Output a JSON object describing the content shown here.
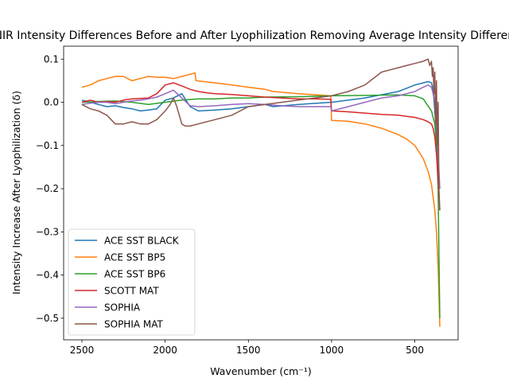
{
  "chart_data": {
    "type": "line",
    "title": "NIR Intensity Differences Before and After Lyophilization Removing Average Intensity Difference",
    "xlabel": "Wavenumber (cm⁻¹)",
    "ylabel": "Intensity Increase After Lyophilization (δ)",
    "xlim": [
      2610,
      240
    ],
    "ylim": [
      -0.55,
      0.13
    ],
    "x_inverted": true,
    "xticks": [
      2500,
      2000,
      1500,
      1000,
      500
    ],
    "yticks": [
      0.1,
      0.0,
      -0.1,
      -0.2,
      -0.3,
      -0.4,
      -0.5
    ],
    "grid": false,
    "legend_position": "lower-left",
    "series": [
      {
        "name": "ACE SST BLACK",
        "color": "#1f77b4",
        "x": [
          2500,
          2450,
          2400,
          2350,
          2300,
          2250,
          2200,
          2150,
          2100,
          2050,
          2000,
          1950,
          1900,
          1850,
          1800,
          1700,
          1600,
          1500,
          1400,
          1350,
          1200,
          1000,
          800,
          600,
          500,
          450,
          420,
          400,
          390,
          380,
          370,
          360,
          350
        ],
        "values": [
          0.005,
          0.0,
          -0.005,
          -0.01,
          -0.008,
          -0.012,
          -0.015,
          -0.02,
          -0.018,
          -0.015,
          0.005,
          0.01,
          0.02,
          -0.01,
          -0.02,
          -0.018,
          -0.015,
          -0.01,
          -0.005,
          -0.01,
          -0.005,
          0.0,
          0.01,
          0.025,
          0.04,
          0.045,
          0.048,
          0.045,
          0.03,
          -0.02,
          -0.08,
          -0.15,
          -0.2
        ]
      },
      {
        "name": "ACE SST BP5",
        "color": "#ff7f0e",
        "x": [
          2500,
          2450,
          2400,
          2350,
          2300,
          2250,
          2200,
          2150,
          2100,
          2050,
          2000,
          1950,
          1900,
          1850,
          1820,
          1815,
          1700,
          1600,
          1500,
          1400,
          1350,
          1200,
          1005,
          1000,
          900,
          800,
          700,
          600,
          550,
          500,
          450,
          420,
          400,
          390,
          380,
          370,
          360,
          355,
          350
        ],
        "values": [
          0.035,
          0.04,
          0.05,
          0.055,
          0.06,
          0.06,
          0.05,
          0.055,
          0.06,
          0.058,
          0.058,
          0.055,
          0.06,
          0.065,
          0.068,
          0.05,
          0.045,
          0.04,
          0.035,
          0.03,
          0.025,
          0.02,
          0.015,
          -0.042,
          -0.044,
          -0.05,
          -0.06,
          -0.075,
          -0.085,
          -0.1,
          -0.13,
          -0.16,
          -0.19,
          -0.22,
          -0.25,
          -0.3,
          -0.38,
          -0.45,
          -0.52
        ]
      },
      {
        "name": "ACE SST BP6",
        "color": "#2ca02c",
        "x": [
          2500,
          2400,
          2300,
          2200,
          2100,
          2000,
          1900,
          1800,
          1700,
          1600,
          1500,
          1400,
          1200,
          1000,
          800,
          600,
          500,
          450,
          400,
          380,
          370,
          360,
          355,
          350
        ],
        "values": [
          0.0,
          0.002,
          0.003,
          0.0,
          -0.005,
          0.0,
          0.005,
          0.008,
          0.008,
          0.01,
          0.01,
          0.012,
          0.013,
          0.015,
          0.016,
          0.017,
          0.015,
          0.008,
          -0.02,
          -0.05,
          -0.1,
          -0.2,
          -0.35,
          -0.5
        ]
      },
      {
        "name": "SCOTT MAT",
        "color": "#d62728",
        "x": [
          2500,
          2450,
          2400,
          2350,
          2300,
          2250,
          2200,
          2100,
          2050,
          2000,
          1950,
          1900,
          1850,
          1800,
          1750,
          1700,
          1600,
          1500,
          1400,
          1300,
          1200,
          1100,
          1005,
          1000,
          900,
          800,
          700,
          600,
          500,
          450,
          420,
          400,
          390,
          380,
          370,
          360,
          350
        ],
        "values": [
          0.0,
          0.005,
          0.0,
          0.002,
          0.0,
          0.005,
          0.008,
          0.01,
          0.02,
          0.04,
          0.045,
          0.038,
          0.03,
          0.025,
          0.022,
          0.02,
          0.018,
          0.015,
          0.012,
          0.01,
          0.008,
          0.008,
          0.007,
          -0.02,
          -0.022,
          -0.025,
          -0.028,
          -0.03,
          -0.035,
          -0.04,
          -0.045,
          -0.05,
          -0.06,
          -0.08,
          -0.12,
          -0.18,
          -0.25
        ]
      },
      {
        "name": "SOPHIA",
        "color": "#9467bd",
        "x": [
          2500,
          2450,
          2400,
          2350,
          2300,
          2250,
          2200,
          2150,
          2100,
          2050,
          2000,
          1950,
          1900,
          1850,
          1800,
          1700,
          1600,
          1500,
          1400,
          1300,
          1200,
          1005,
          1000,
          900,
          800,
          700,
          600,
          500,
          450,
          420,
          400,
          390,
          380,
          370,
          360,
          350
        ],
        "values": [
          -0.005,
          -0.002,
          0.0,
          0.0,
          -0.003,
          0.0,
          0.003,
          0.005,
          0.008,
          0.012,
          0.02,
          0.028,
          0.01,
          -0.008,
          -0.01,
          -0.008,
          -0.005,
          -0.003,
          -0.005,
          -0.008,
          -0.01,
          -0.01,
          -0.02,
          -0.01,
          0.0,
          0.01,
          0.015,
          0.025,
          0.035,
          0.04,
          0.035,
          0.02,
          0.0,
          -0.05,
          -0.12,
          -0.2
        ]
      },
      {
        "name": "SOPHIA MAT",
        "color": "#8c564b",
        "x": [
          2500,
          2450,
          2400,
          2350,
          2300,
          2250,
          2200,
          2150,
          2100,
          2050,
          2000,
          1970,
          1950,
          1930,
          1900,
          1880,
          1850,
          1800,
          1700,
          1600,
          1500,
          1400,
          1300,
          1200,
          1100,
          1000,
          900,
          800,
          700,
          650,
          600,
          550,
          500,
          450,
          420,
          410,
          400,
          395,
          390,
          385,
          380,
          375,
          370,
          365,
          360,
          355,
          350
        ],
        "values": [
          -0.005,
          -0.015,
          -0.02,
          -0.03,
          -0.05,
          -0.05,
          -0.045,
          -0.05,
          -0.05,
          -0.04,
          -0.02,
          -0.005,
          0.01,
          -0.01,
          -0.05,
          -0.055,
          -0.055,
          -0.05,
          -0.04,
          -0.03,
          -0.01,
          -0.005,
          0.0,
          0.005,
          0.01,
          0.015,
          0.025,
          0.04,
          0.07,
          0.075,
          0.08,
          0.085,
          0.09,
          0.095,
          0.1,
          0.085,
          0.095,
          0.06,
          0.08,
          0.02,
          0.07,
          -0.05,
          0.05,
          -0.1,
          0.0,
          -0.2,
          -0.25
        ]
      }
    ]
  }
}
